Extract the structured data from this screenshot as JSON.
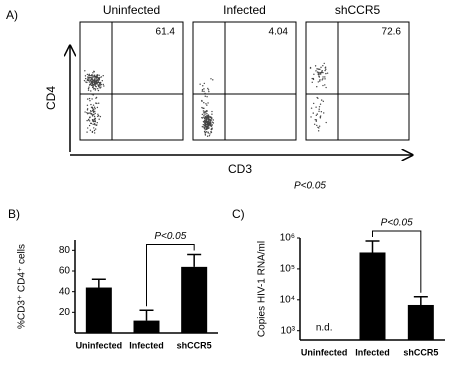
{
  "flow_panel": {
    "panel_label": "A)",
    "y_label": "CD4",
    "x_label": "CD3",
    "note": "P<0.05",
    "plots": [
      {
        "title": "Uninfected",
        "percent": "61.4"
      },
      {
        "title": "Infected",
        "percent": "4.04"
      },
      {
        "title": "shCCR5",
        "percent": "72.6"
      }
    ]
  },
  "chart_data": [
    {
      "type": "bar",
      "panel_label": "B)",
      "y_label": "%CD3⁺ CD4⁺ cells",
      "categories": [
        "Uninfected",
        "Infected",
        "shCCR5"
      ],
      "values": [
        44,
        12,
        64
      ],
      "errors": [
        8,
        10,
        12
      ],
      "color": "#000000",
      "ylim": [
        0,
        90
      ],
      "yticks": [
        20,
        40,
        60,
        80
      ],
      "significance": "P<0.05"
    },
    {
      "type": "bar",
      "panel_label": "C)",
      "y_label": "Copies HIV-1 RNA/ml",
      "log_scale": true,
      "categories": [
        "Uninfected",
        "Infected",
        "shCCR5"
      ],
      "values": [
        null,
        340000,
        6800
      ],
      "value_labels": [
        "n.d.",
        null,
        null
      ],
      "errors": [
        null,
        460000,
        5800
      ],
      "color": "#000000",
      "ylim": [
        500,
        1000000
      ],
      "yticks": [
        {
          "value": 1000,
          "label": "10³"
        },
        {
          "value": 10000,
          "label": "10⁴"
        },
        {
          "value": 100000,
          "label": "10⁵"
        },
        {
          "value": 1000000,
          "label": "10⁶"
        }
      ],
      "significance": "P<0.05"
    }
  ]
}
